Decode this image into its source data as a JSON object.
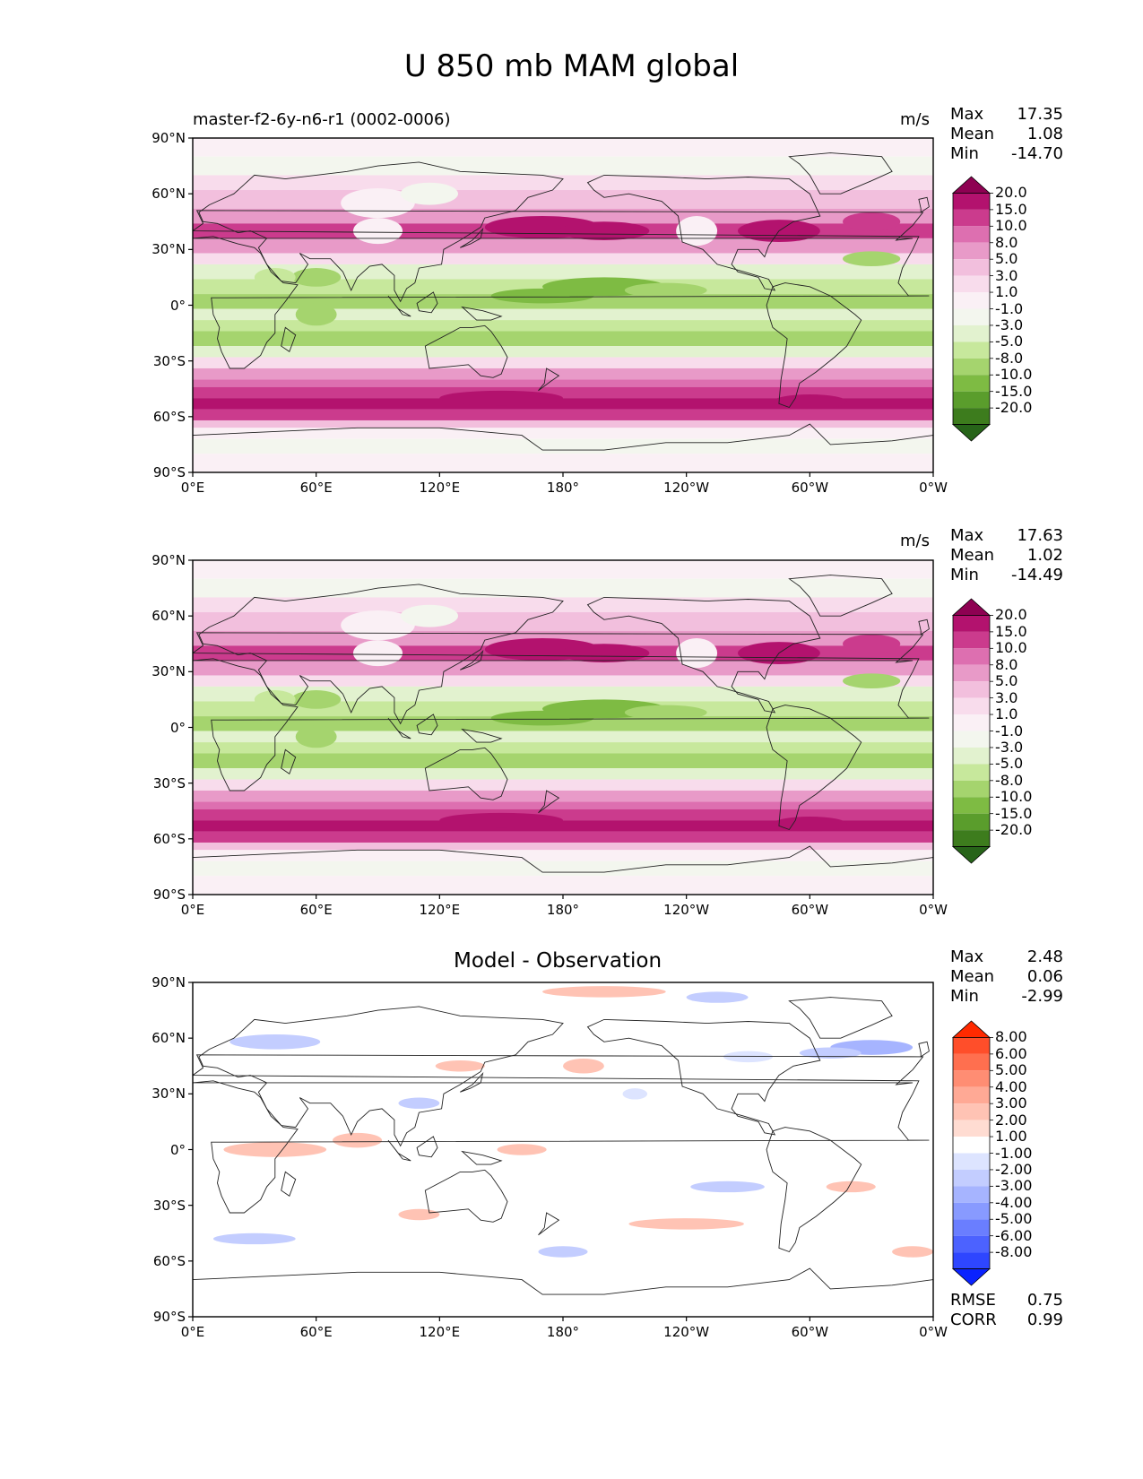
{
  "title": "U 850 mb MAM global",
  "lat_ticks": [
    "90°N",
    "60°N",
    "30°N",
    "0°",
    "30°S",
    "60°S",
    "90°S"
  ],
  "lon_ticks": [
    "0°E",
    "60°E",
    "120°E",
    "180°",
    "120°W",
    "60°W",
    "0°W"
  ],
  "panels": [
    {
      "name": "test",
      "subtitle": "master-f2-6y-n6-r1 (0002-0006)",
      "units": "m/s",
      "center_title": "",
      "stats": {
        "max_label": "Max",
        "max": "17.35",
        "mean_label": "Mean",
        "mean": "1.08",
        "min_label": "Min",
        "min": "-14.70"
      },
      "colorbar": {
        "ticks": [
          "20.0",
          "15.0",
          "10.0",
          "8.0",
          "5.0",
          "3.0",
          "1.0",
          "-1.0",
          "-3.0",
          "-5.0",
          "-8.0",
          "-10.0",
          "-15.0",
          "-20.0"
        ],
        "colors": [
          "#8e0152",
          "#b3126e",
          "#cb3b8d",
          "#dd6fb0",
          "#e89ac8",
          "#f2bfdd",
          "#f8dcec",
          "#faf0f5",
          "#f3f6ee",
          "#e2f2cf",
          "#c7e89c",
          "#a5d46e",
          "#7ebb43",
          "#5a9d2c",
          "#3d7c1d",
          "#276419"
        ],
        "min_value": -20,
        "max_value": 20
      }
    },
    {
      "name": "reference",
      "subtitle": "",
      "units": "m/s",
      "center_title": "",
      "stats": {
        "max_label": "Max",
        "max": "17.63",
        "mean_label": "Mean",
        "mean": "1.02",
        "min_label": "Min",
        "min": "-14.49"
      },
      "colorbar": {
        "ticks": [
          "20.0",
          "15.0",
          "10.0",
          "8.0",
          "5.0",
          "3.0",
          "1.0",
          "-1.0",
          "-3.0",
          "-5.0",
          "-8.0",
          "-10.0",
          "-15.0",
          "-20.0"
        ],
        "colors": [
          "#8e0152",
          "#b3126e",
          "#cb3b8d",
          "#dd6fb0",
          "#e89ac8",
          "#f2bfdd",
          "#f8dcec",
          "#faf0f5",
          "#f3f6ee",
          "#e2f2cf",
          "#c7e89c",
          "#a5d46e",
          "#7ebb43",
          "#5a9d2c",
          "#3d7c1d",
          "#276419"
        ],
        "min_value": -20,
        "max_value": 20
      }
    },
    {
      "name": "difference",
      "subtitle": "",
      "units": "",
      "center_title": "Model - Observation",
      "stats": {
        "max_label": "Max",
        "max": "2.48",
        "mean_label": "Mean",
        "mean": "0.06",
        "min_label": "Min",
        "min": "-2.99"
      },
      "colorbar": {
        "ticks": [
          "8.00",
          "6.00",
          "5.00",
          "4.00",
          "3.00",
          "2.00",
          "1.00",
          "-1.00",
          "-2.00",
          "-3.00",
          "-4.00",
          "-5.00",
          "-6.00",
          "-8.00"
        ],
        "colors": [
          "#ff2a00",
          "#ff4e2a",
          "#ff6f4f",
          "#ff8d73",
          "#ffa995",
          "#ffc3b4",
          "#ffdcd2",
          "#ffffff",
          "#dde4ff",
          "#c3cdff",
          "#a6b4ff",
          "#889aff",
          "#6a7eff",
          "#4c62ff",
          "#2e46ff",
          "#0a22ff"
        ],
        "min_value": -8,
        "max_value": 8
      },
      "metrics": {
        "rmse_label": "RMSE",
        "rmse": "0.75",
        "corr_label": "CORR",
        "corr": "0.99"
      }
    }
  ],
  "colors": {
    "zonal_bands_main": "PiYG diverging",
    "zonal_bands_diff": "bwr diverging"
  }
}
